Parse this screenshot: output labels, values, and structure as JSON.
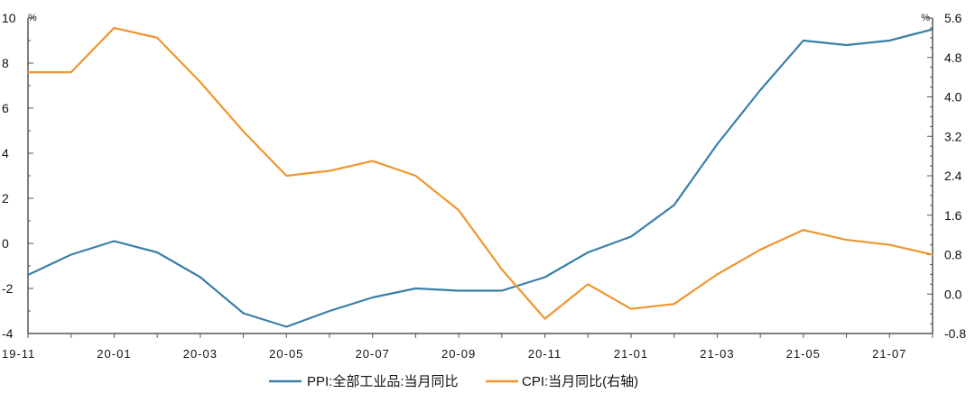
{
  "chart_data": {
    "type": "line",
    "categories": [
      "19-11",
      "19-12",
      "20-01",
      "20-02",
      "20-03",
      "20-04",
      "20-05",
      "20-06",
      "20-07",
      "20-08",
      "20-09",
      "20-10",
      "20-11",
      "20-12",
      "21-01",
      "21-02",
      "21-03",
      "21-04",
      "21-05",
      "21-06",
      "21-07",
      "21-08"
    ],
    "x_tick_labels": [
      "19-11",
      "20-01",
      "20-03",
      "20-05",
      "20-07",
      "20-09",
      "20-11",
      "21-01",
      "21-03",
      "21-05",
      "21-07"
    ],
    "left_axis": {
      "unit": "%",
      "ylim": [
        -4,
        10
      ],
      "ticks": [
        "-4",
        "-2",
        "0",
        "2",
        "4",
        "6",
        "8",
        "10"
      ]
    },
    "right_axis": {
      "unit": "%",
      "ylim": [
        -0.8,
        5.6
      ],
      "ticks": [
        "-0.8",
        "0.0",
        "0.8",
        "1.6",
        "2.4",
        "3.2",
        "4.0",
        "4.8",
        "5.6"
      ]
    },
    "series": [
      {
        "name": "PPI:全部工业品:当月同比",
        "axis": "left",
        "color": "#3a7fa8",
        "values": [
          -1.4,
          -0.5,
          0.1,
          -0.4,
          -1.5,
          -3.1,
          -3.7,
          -3.0,
          -2.4,
          -2.0,
          -2.1,
          -2.1,
          -1.5,
          -0.4,
          0.3,
          1.7,
          4.4,
          6.8,
          9.0,
          8.8,
          9.0,
          9.5
        ]
      },
      {
        "name": "CPI:当月同比(右轴)",
        "axis": "right",
        "color": "#f0962e",
        "values": [
          4.5,
          4.5,
          5.4,
          5.2,
          4.3,
          3.3,
          2.4,
          2.5,
          2.7,
          2.4,
          1.7,
          0.5,
          -0.5,
          0.2,
          -0.3,
          -0.2,
          0.4,
          0.9,
          1.3,
          1.1,
          1.0,
          0.8
        ]
      }
    ],
    "legend_position": "bottom-center",
    "grid": false
  }
}
